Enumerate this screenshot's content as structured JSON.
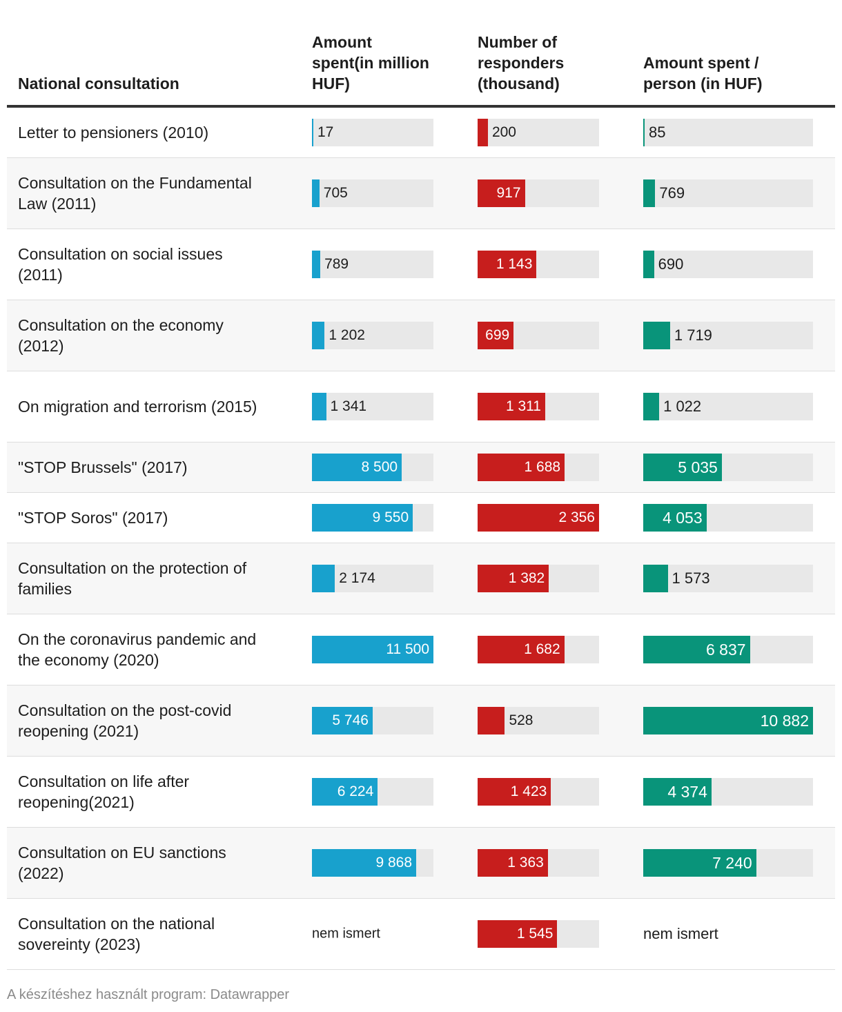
{
  "chart_data": {
    "type": "table",
    "columns": [
      "National consultation",
      "Amount spent(in million HUF)",
      "Number of responders (thousand)",
      "Amount spent / person (in HUF)"
    ],
    "rows": [
      {
        "name": "Letter to pensioners (2010)",
        "spent": 17,
        "responders": 200,
        "per_person": 85,
        "spent_label": "17",
        "responders_label": "200",
        "per_person_label": "85"
      },
      {
        "name": "Consultation on the Fundamental Law (2011)",
        "spent": 705,
        "responders": 917,
        "per_person": 769,
        "spent_label": "705",
        "responders_label": "917",
        "per_person_label": "769"
      },
      {
        "name": "Consultation on social issues (2011)",
        "spent": 789,
        "responders": 1143,
        "per_person": 690,
        "spent_label": "789",
        "responders_label": "1 143",
        "per_person_label": "690"
      },
      {
        "name": "Consultation on the economy (2012)",
        "spent": 1202,
        "responders": 699,
        "per_person": 1719,
        "spent_label": "1 202",
        "responders_label": "699",
        "per_person_label": "1 719"
      },
      {
        "name": "On migration and terrorism (2015)",
        "spent": 1341,
        "responders": 1311,
        "per_person": 1022,
        "spent_label": "1 341",
        "responders_label": "1 311",
        "per_person_label": "1 022"
      },
      {
        "name": "\"STOP Brussels\" (2017)",
        "spent": 8500,
        "responders": 1688,
        "per_person": 5035,
        "spent_label": "8 500",
        "responders_label": "1 688",
        "per_person_label": "5 035"
      },
      {
        "name": "\"STOP Soros\" (2017)",
        "spent": 9550,
        "responders": 2356,
        "per_person": 4053,
        "spent_label": "9 550",
        "responders_label": "2 356",
        "per_person_label": "4 053"
      },
      {
        "name": "Consultation on the protection of families",
        "spent": 2174,
        "responders": 1382,
        "per_person": 1573,
        "spent_label": "2 174",
        "responders_label": "1 382",
        "per_person_label": "1 573"
      },
      {
        "name": "On the coronavirus pandemic and the economy (2020)",
        "spent": 11500,
        "responders": 1682,
        "per_person": 6837,
        "spent_label": "11 500",
        "responders_label": "1 682",
        "per_person_label": "6 837"
      },
      {
        "name": "Consultation on the post-covid reopening (2021)",
        "spent": 5746,
        "responders": 528,
        "per_person": 10882,
        "spent_label": "5 746",
        "responders_label": "528",
        "per_person_label": "10 882"
      },
      {
        "name": "Consultation on life after reopening(2021)",
        "spent": 6224,
        "responders": 1423,
        "per_person": 4374,
        "spent_label": "6 224",
        "responders_label": "1 423",
        "per_person_label": "4 374"
      },
      {
        "name": "Consultation on EU sanctions (2022)",
        "spent": 9868,
        "responders": 1363,
        "per_person": 7240,
        "spent_label": "9 868",
        "responders_label": "1 363",
        "per_person_label": "7 240"
      },
      {
        "name": "Consultation on the national sovereinty (2023)",
        "spent": null,
        "responders": 1545,
        "per_person": null,
        "spent_label": "nem ismert",
        "responders_label": "1 545",
        "per_person_label": "nem ismert"
      }
    ],
    "scale_max": {
      "spent": 11500,
      "responders": 2356,
      "per_person": 10882
    },
    "colors": {
      "spent": "#18a1cd",
      "responders": "#c71e1d",
      "per_person": "#09947a",
      "track": "#e8e8e8"
    }
  },
  "footer": "A készítéshez használt program: Datawrapper"
}
